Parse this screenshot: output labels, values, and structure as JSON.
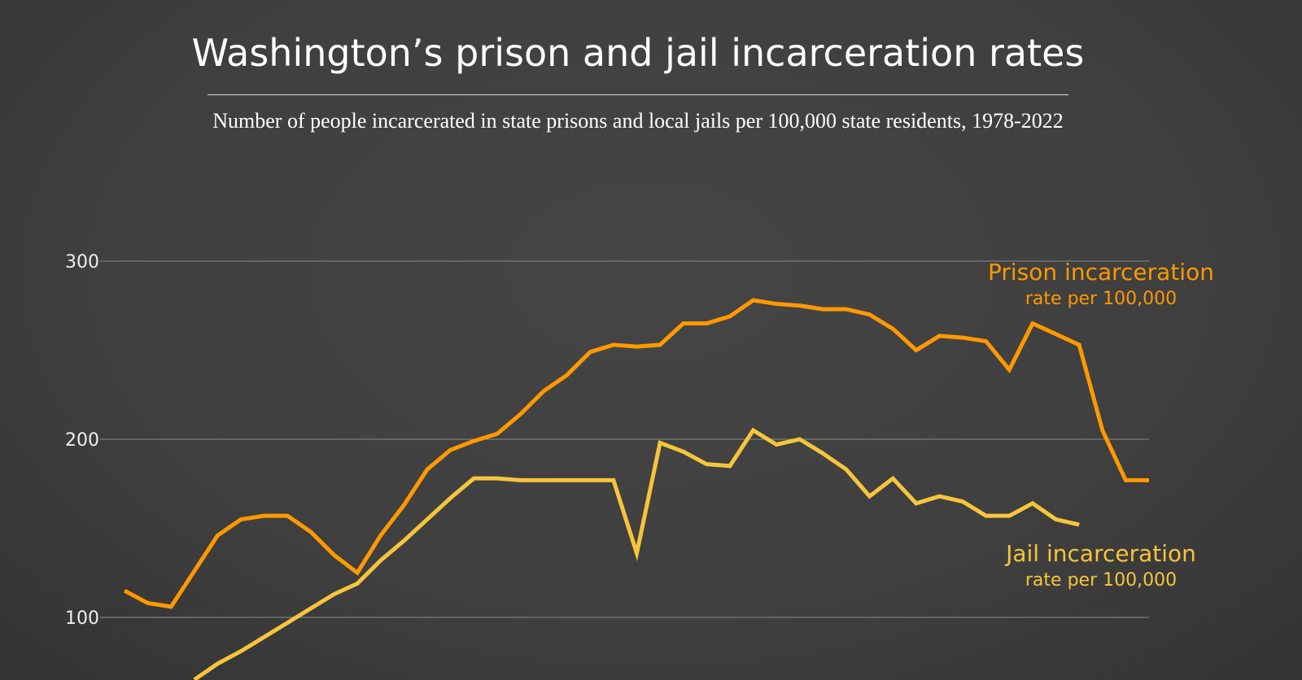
{
  "title": "Washington’s prison and jail incarceration rates",
  "subtitle": "Number of people incarcerated in state prisons and local jails per 100,000 state residents, 1978-2022",
  "chart_data": {
    "type": "line",
    "title": "Washington’s prison and jail incarceration rates",
    "subtitle": "Number of people incarcerated in state prisons and local jails per 100,000 state residents, 1978-2022",
    "xlim": [
      1978,
      2022
    ],
    "ylim": [
      70,
      320
    ],
    "yticks": [
      "100",
      "200",
      "300"
    ],
    "ytick_values": [
      100,
      200,
      300
    ],
    "grid": true,
    "series": [
      {
        "name": "Prison incarceration",
        "label_sub": "rate per 100,000",
        "color": "#ff9900",
        "x": [
          1978,
          1979,
          1980,
          1981,
          1982,
          1983,
          1984,
          1985,
          1986,
          1987,
          1988,
          1989,
          1990,
          1991,
          1992,
          1993,
          1994,
          1995,
          1996,
          1997,
          1998,
          1999,
          2000,
          2001,
          2002,
          2003,
          2004,
          2005,
          2006,
          2007,
          2008,
          2009,
          2010,
          2011,
          2012,
          2013,
          2014,
          2015,
          2016,
          2017,
          2018,
          2019,
          2020,
          2021,
          2022
        ],
        "values": [
          115,
          108,
          106,
          126,
          146,
          155,
          157,
          157,
          148,
          135,
          125,
          146,
          163,
          183,
          194,
          199,
          203,
          214,
          227,
          236,
          249,
          253,
          252,
          253,
          265,
          265,
          269,
          278,
          276,
          275,
          273,
          273,
          270,
          262,
          250,
          258,
          257,
          255,
          239,
          265,
          259,
          253,
          205,
          177,
          177
        ]
      },
      {
        "name": "Jail incarceration",
        "label_sub": "rate per 100,000",
        "color": "#f7c53b",
        "x": [
          1981,
          1982,
          1983,
          1984,
          1985,
          1986,
          1987,
          1988,
          1989,
          1990,
          1991,
          1992,
          1993,
          1994,
          1995,
          1996,
          1997,
          1998,
          1999,
          2000,
          2001,
          2002,
          2003,
          2004,
          2005,
          2006,
          2007,
          2008,
          2009,
          2010,
          2011,
          2012,
          2013,
          2014,
          2015,
          2016,
          2017,
          2018,
          2019
        ],
        "values": [
          65,
          74,
          81,
          89,
          97,
          105,
          113,
          119,
          132,
          143,
          155,
          167,
          178,
          178,
          177,
          177,
          177,
          177,
          177,
          136,
          198,
          193,
          186,
          185,
          205,
          197,
          200,
          192,
          183,
          168,
          178,
          164,
          168,
          165,
          157,
          157,
          164,
          155,
          152
        ]
      }
    ]
  }
}
